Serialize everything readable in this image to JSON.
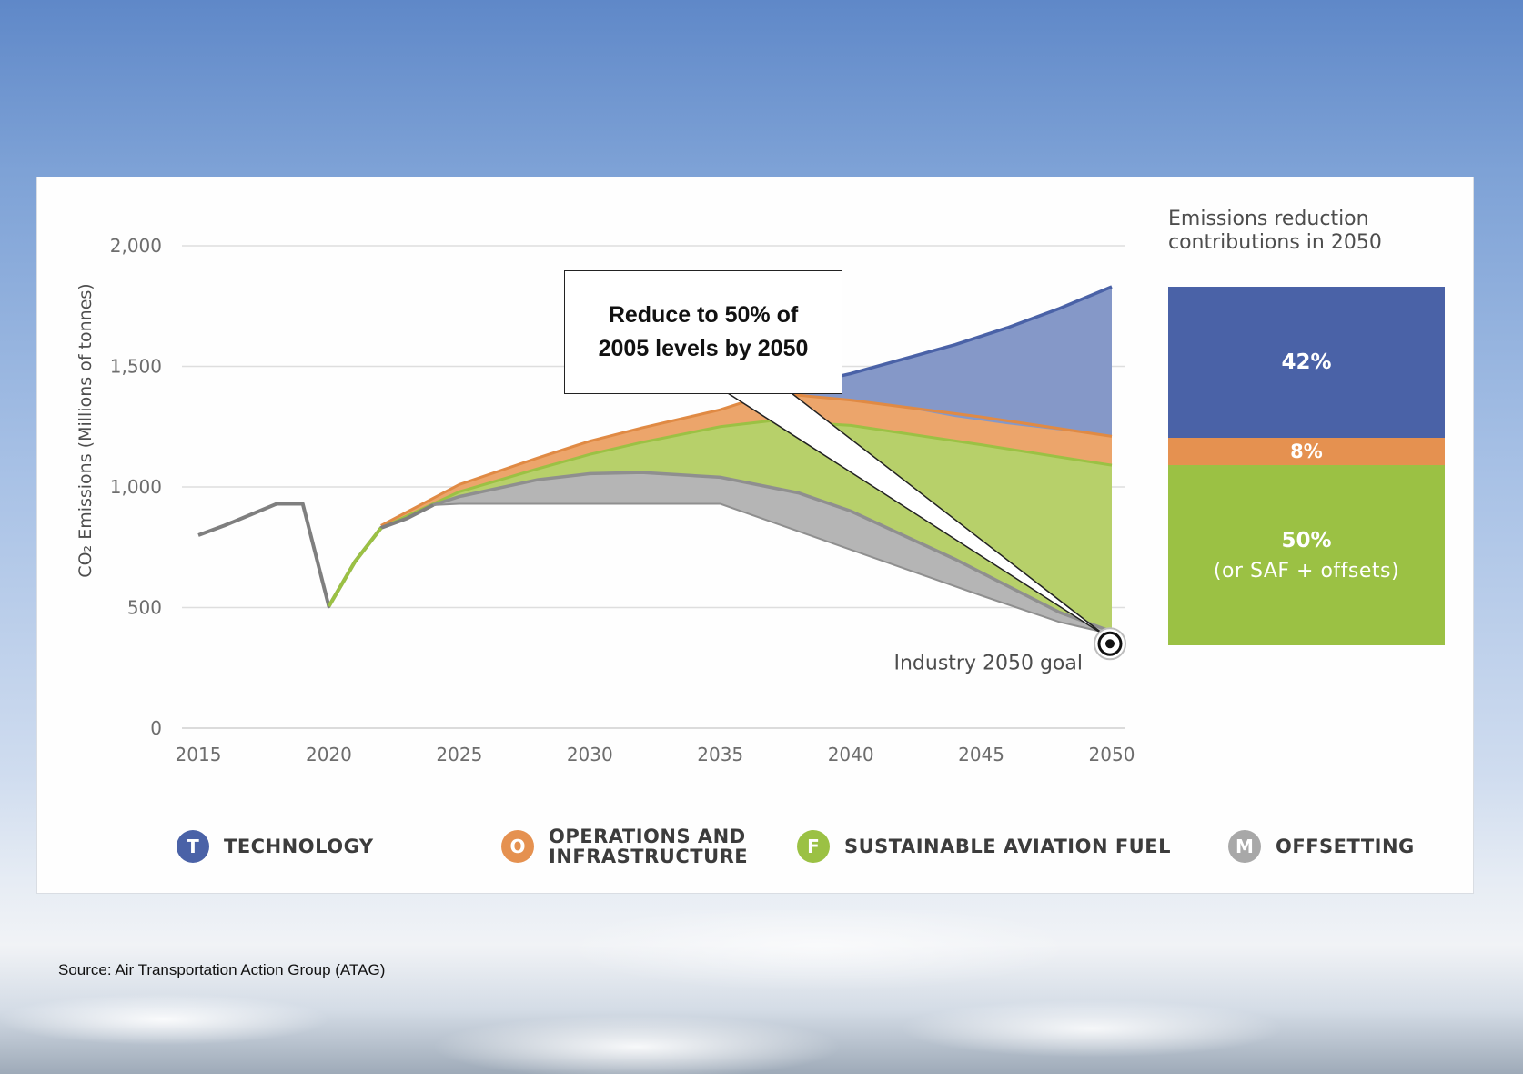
{
  "chart_data": {
    "type": "area",
    "ylabel": "CO₂ Emissions (Millions of tonnes)",
    "xlabel": "",
    "ylim": [
      0,
      2000
    ],
    "xlim": [
      2015,
      2050
    ],
    "y_ticks": [
      "0",
      "500",
      "1,000",
      "1,500",
      "2,000"
    ],
    "x_ticks": [
      "2015",
      "2020",
      "2025",
      "2030",
      "2035",
      "2040",
      "2045",
      "2050"
    ],
    "grid": "horizontal",
    "historical_line": {
      "x": [
        2015,
        2016,
        2017,
        2018,
        2019,
        2020,
        2021,
        2022,
        2023,
        2024
      ],
      "y": [
        800,
        840,
        885,
        930,
        930,
        505,
        690,
        830,
        870,
        925
      ]
    },
    "series": [
      {
        "name": "TECHNOLOGY",
        "upper": {
          "x": [
            2037,
            2038,
            2040,
            2042,
            2044,
            2046,
            2048,
            2050
          ],
          "y": [
            1390,
            1420,
            1470,
            1530,
            1590,
            1660,
            1740,
            1830
          ]
        },
        "lower": {
          "x": [
            2037,
            2038,
            2040,
            2042,
            2044,
            2046,
            2048,
            2050
          ],
          "y": [
            1390,
            1385,
            1360,
            1330,
            1290,
            1260,
            1235,
            1210
          ]
        }
      },
      {
        "name": "OPERATIONS AND INFRASTRUCTURE",
        "upper": {
          "x": [
            2022,
            2025,
            2028,
            2030,
            2032,
            2035,
            2037,
            2040,
            2045,
            2050
          ],
          "y": [
            840,
            1010,
            1120,
            1190,
            1245,
            1320,
            1390,
            1360,
            1290,
            1210
          ]
        },
        "lower": {
          "x": [
            2022,
            2025,
            2028,
            2030,
            2032,
            2035,
            2037,
            2040,
            2045,
            2050
          ],
          "y": [
            830,
            980,
            1075,
            1135,
            1185,
            1250,
            1275,
            1255,
            1175,
            1090
          ]
        }
      },
      {
        "name": "SUSTAINABLE AVIATION FUEL",
        "upper": {
          "x": [
            2020,
            2021,
            2022,
            2025,
            2028,
            2030,
            2032,
            2035,
            2037,
            2040,
            2045,
            2050
          ],
          "y": [
            505,
            690,
            830,
            980,
            1075,
            1135,
            1185,
            1250,
            1275,
            1255,
            1175,
            1090
          ]
        },
        "lower": {
          "x": [
            2020,
            2021,
            2022,
            2023,
            2024,
            2025,
            2028,
            2030,
            2032,
            2035,
            2038,
            2040,
            2044,
            2048,
            2050
          ],
          "y": [
            505,
            690,
            830,
            870,
            925,
            960,
            1030,
            1055,
            1060,
            1040,
            975,
            900,
            700,
            480,
            400
          ]
        }
      },
      {
        "name": "OFFSETTING",
        "upper": {
          "x": [
            2024,
            2025,
            2028,
            2030,
            2032,
            2035,
            2038,
            2040,
            2044,
            2048,
            2050
          ],
          "y": [
            925,
            960,
            1030,
            1055,
            1060,
            1040,
            975,
            900,
            700,
            480,
            400
          ]
        },
        "lower": {
          "x": [
            2024,
            2025,
            2030,
            2035,
            2040,
            2045,
            2048,
            2050
          ],
          "y": [
            925,
            930,
            930,
            930,
            740,
            550,
            440,
            390
          ]
        }
      }
    ],
    "goal": {
      "x": 2050,
      "y": 350,
      "label": "Industry 2050 goal"
    },
    "callout": "Reduce to 50% of 2005 levels by 2050",
    "colors": {
      "technology": "#8598c8",
      "technology_line": "#4a62a7",
      "operations": "#eca56b",
      "saf": "#b7d06a",
      "saf_line": "#9bc144",
      "offsetting": "#b5b5b5",
      "offsetting_line": "#8f8f8f",
      "historical_line": "#7f7f7f"
    }
  },
  "side": {
    "title_line1": "Emissions reduction",
    "title_line2": "contributions in 2050",
    "tech_pct": "42%",
    "ops_pct": "8%",
    "saf_pct": "50%",
    "saf_note": "(or SAF + offsets)"
  },
  "legend": {
    "tech": {
      "letter": "T",
      "label": "TECHNOLOGY",
      "color": "#4a62a7"
    },
    "ops": {
      "letter": "O",
      "label_line1": "OPERATIONS AND",
      "label_line2": "INFRASTRUCTURE",
      "color": "#e59150"
    },
    "saf": {
      "letter": "F",
      "label": "SUSTAINABLE AVIATION FUEL",
      "color": "#9bc144"
    },
    "off": {
      "letter": "M",
      "label": "OFFSETTING",
      "color": "#a8a8a8"
    }
  },
  "source": "Source: Air Transportation Action Group (ATAG)"
}
